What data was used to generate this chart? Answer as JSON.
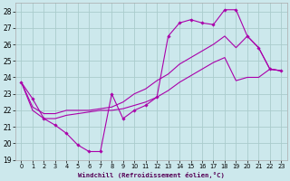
{
  "xlabel": "Windchill (Refroidissement éolien,°C)",
  "bg_color": "#cce8ec",
  "grid_color": "#aacccc",
  "line_color": "#aa00aa",
  "xlim": [
    -0.5,
    23.5
  ],
  "ylim": [
    19,
    28.5
  ],
  "xticks": [
    0,
    1,
    2,
    3,
    4,
    5,
    6,
    7,
    8,
    9,
    10,
    11,
    12,
    13,
    14,
    15,
    16,
    17,
    18,
    19,
    20,
    21,
    22,
    23
  ],
  "yticks": [
    19,
    20,
    21,
    22,
    23,
    24,
    25,
    26,
    27,
    28
  ],
  "zigzag_x": [
    0,
    1,
    2,
    3,
    4,
    5,
    6,
    7,
    8,
    9,
    10,
    11,
    12,
    13,
    14,
    15,
    16,
    17,
    18,
    19,
    20,
    21,
    22,
    23
  ],
  "zigzag_y": [
    23.7,
    22.7,
    21.5,
    21.1,
    20.6,
    19.9,
    19.5,
    19.5,
    23.0,
    21.5,
    22.0,
    22.3,
    22.8,
    26.5,
    27.3,
    27.5,
    27.3,
    27.2,
    28.1,
    28.1,
    26.5,
    25.8,
    24.5,
    24.4
  ],
  "upper_x": [
    0,
    1,
    2,
    3,
    4,
    5,
    6,
    7,
    8,
    9,
    10,
    11,
    12,
    13,
    14,
    15,
    16,
    17,
    18,
    19,
    20,
    21,
    22,
    23
  ],
  "upper_y": [
    23.7,
    22.2,
    21.8,
    21.8,
    22.0,
    22.0,
    22.0,
    22.1,
    22.2,
    22.5,
    23.0,
    23.3,
    23.8,
    24.2,
    24.8,
    25.2,
    25.6,
    26.0,
    26.5,
    25.8,
    26.5,
    25.8,
    24.5,
    24.4
  ],
  "lower_x": [
    0,
    1,
    2,
    3,
    4,
    5,
    6,
    7,
    8,
    9,
    10,
    11,
    12,
    13,
    14,
    15,
    16,
    17,
    18,
    19,
    20,
    21,
    22,
    23
  ],
  "lower_y": [
    23.7,
    22.0,
    21.5,
    21.5,
    21.7,
    21.8,
    21.9,
    22.0,
    22.0,
    22.1,
    22.3,
    22.5,
    22.8,
    23.2,
    23.7,
    24.1,
    24.5,
    24.9,
    25.2,
    23.8,
    24.0,
    24.0,
    24.5,
    24.4
  ]
}
